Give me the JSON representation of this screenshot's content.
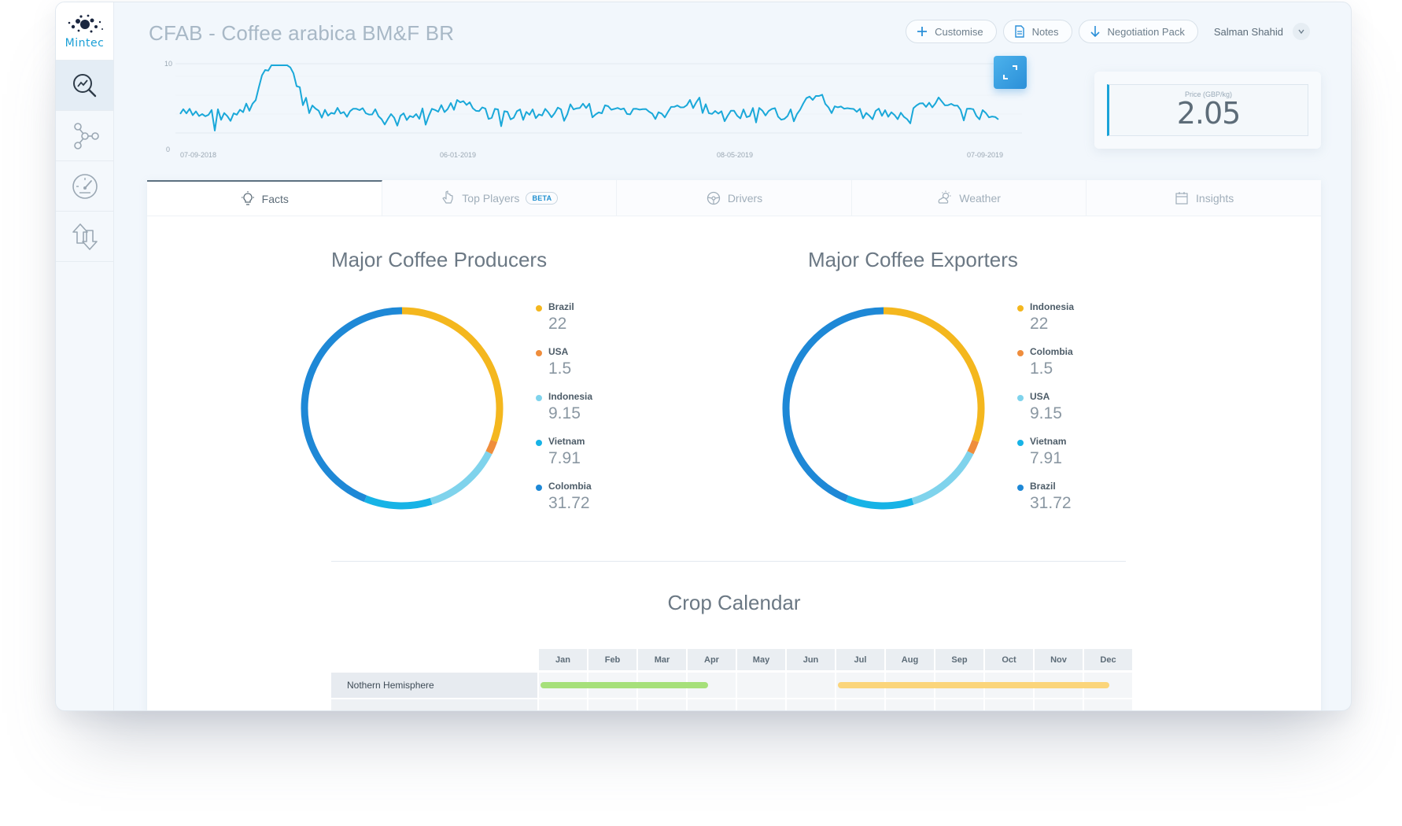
{
  "app": {
    "logo_text": "Mintec"
  },
  "header": {
    "title": "CFAB - Coffee arabica BM&F BR",
    "customise_label": "Customise",
    "notes_label": "Notes",
    "negotiation_label": "Negotiation Pack",
    "user_name": "Salman Shahid"
  },
  "sidebar": {
    "items": [
      {
        "icon": "analytics-search-icon",
        "active": true
      },
      {
        "icon": "network-nodes-icon",
        "active": false
      },
      {
        "icon": "gauge-icon",
        "active": false
      },
      {
        "icon": "swap-arrows-icon",
        "active": false
      }
    ]
  },
  "price_chart": {
    "y_ticks": [
      "10",
      "0"
    ],
    "x_ticks": [
      "07-09-2018",
      "06-01-2019",
      "08-05-2019",
      "07-09-2019"
    ],
    "line_color": "#1aa8d9"
  },
  "price_card": {
    "label": "Price (GBP/kg)",
    "value": "2.05"
  },
  "tabs": [
    {
      "label": "Facts",
      "icon": "lightbulb-icon",
      "active": true
    },
    {
      "label": "Top Players",
      "icon": "hand-pointer-icon",
      "badge": "BETA"
    },
    {
      "label": "Drivers",
      "icon": "steering-wheel-icon"
    },
    {
      "label": "Weather",
      "icon": "sun-cloud-icon"
    },
    {
      "label": "Insights",
      "icon": "calendar-icon"
    }
  ],
  "chart_data": [
    {
      "type": "pie",
      "title": "Major Coffee Producers",
      "categories": [
        "Brazil",
        "USA",
        "Indonesia",
        "Vietnam",
        "Colombia"
      ],
      "values": [
        22,
        1.5,
        9.15,
        7.91,
        31.72
      ],
      "display_values": [
        "22",
        "1.5",
        "9.15",
        "7.91",
        "31.72"
      ],
      "colors": [
        "#f4b71e",
        "#ef8d3c",
        "#7fd3ec",
        "#17b3e6",
        "#1e88d6"
      ]
    },
    {
      "type": "pie",
      "title": "Major Coffee Exporters",
      "categories": [
        "Indonesia",
        "Colombia",
        "USA",
        "Vietnam",
        "Brazil"
      ],
      "values": [
        22,
        1.5,
        9.15,
        7.91,
        31.72
      ],
      "display_values": [
        "22",
        "1.5",
        "9.15",
        "7.91",
        "31.72"
      ],
      "colors": [
        "#f4b71e",
        "#ef8d3c",
        "#7fd3ec",
        "#17b3e6",
        "#1e88d6"
      ]
    }
  ],
  "crop_calendar": {
    "title": "Crop Calendar",
    "months": [
      "Jan",
      "Feb",
      "Mar",
      "Apr",
      "May",
      "Jun",
      "Jul",
      "Aug",
      "Sep",
      "Oct",
      "Nov",
      "Dec"
    ],
    "rows": [
      {
        "label": "Nothern Hemisphere",
        "bars": [
          {
            "start_month": 1,
            "end_month": 3.5,
            "color": "#a6e07a"
          },
          {
            "start_month": 7,
            "end_month": 11.6,
            "color": "#fbd57b"
          }
        ]
      }
    ]
  }
}
